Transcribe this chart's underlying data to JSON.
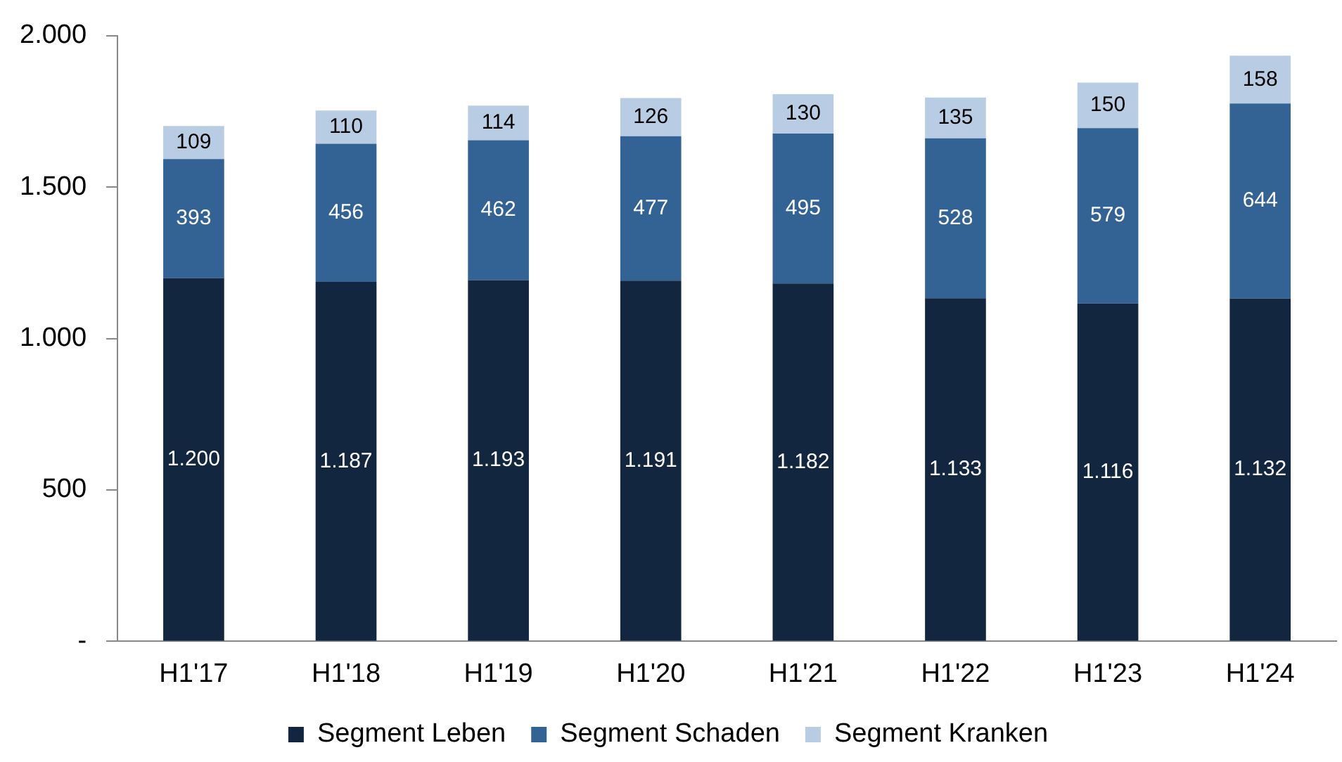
{
  "chart_data": {
    "type": "bar",
    "stacked": true,
    "categories": [
      "H1'17",
      "H1'18",
      "H1'19",
      "H1'20",
      "H1'21",
      "H1'22",
      "H1'23",
      "H1'24"
    ],
    "series": [
      {
        "name": "Segment Leben",
        "color": "#13263f",
        "values": [
          1200,
          1187,
          1193,
          1191,
          1182,
          1133,
          1116,
          1132
        ],
        "value_labels": [
          "1.200",
          "1.187",
          "1.193",
          "1.191",
          "1.182",
          "1.133",
          "1.116",
          "1.132"
        ]
      },
      {
        "name": "Segment Schaden",
        "color": "#336394",
        "values": [
          393,
          456,
          462,
          477,
          495,
          528,
          579,
          644
        ],
        "value_labels": [
          "393",
          "456",
          "462",
          "477",
          "495",
          "528",
          "579",
          "644"
        ]
      },
      {
        "name": "Segment Kranken",
        "color": "#b8cce4",
        "values": [
          109,
          110,
          114,
          126,
          130,
          135,
          150,
          158
        ],
        "value_labels": [
          "109",
          "110",
          "114",
          "126",
          "130",
          "135",
          "150",
          "158"
        ]
      }
    ],
    "ylim": [
      0,
      2000
    ],
    "yticks": [
      {
        "value": 0,
        "label": "-"
      },
      {
        "value": 500,
        "label": "500"
      },
      {
        "value": 1000,
        "label": "1.000"
      },
      {
        "value": 1500,
        "label": "1.500"
      },
      {
        "value": 2000,
        "label": "2.000"
      }
    ],
    "grid": false,
    "legend": "bottom"
  }
}
